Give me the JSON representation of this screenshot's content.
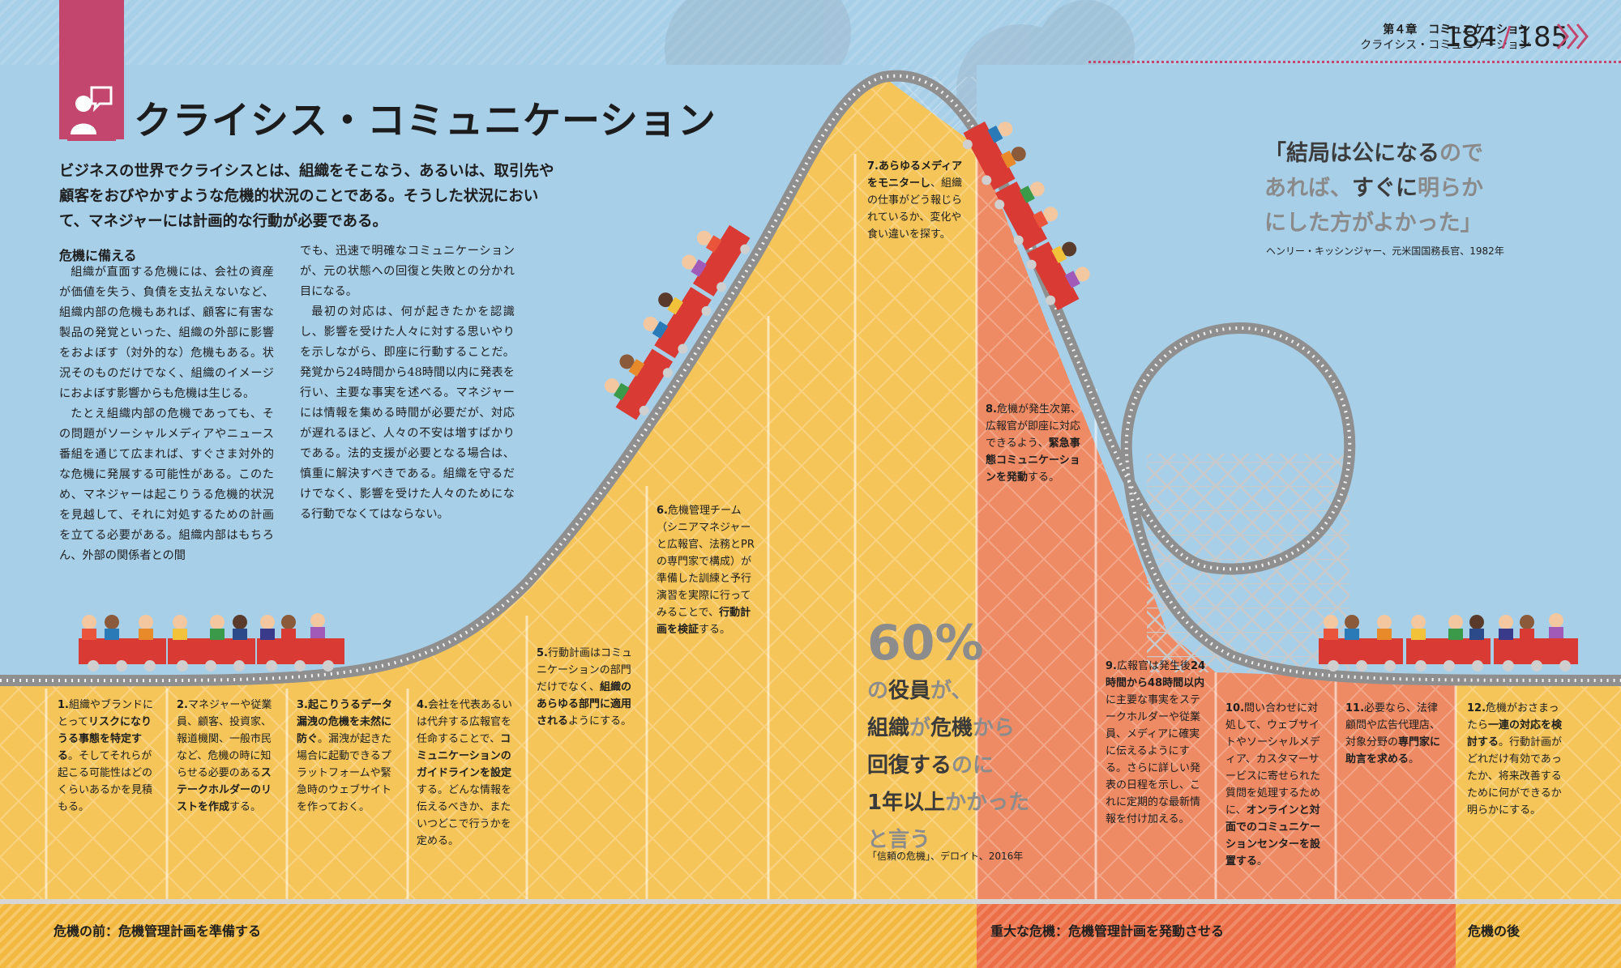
{
  "header": {
    "chapter": "第４章　コミュニケーション",
    "section": "クライシス・コミュニケーション",
    "page_left": "184",
    "page_right": "185"
  },
  "title": "クライシス・コミュニケーション",
  "intro": "ビジネスの世界でクライシスとは、組織をそこなう、あるいは、取引先や顧客をおびやかすような危機的状況のことである。そうした状況において、マネジャーには計画的な行動が必要である。",
  "body": {
    "subheading": "危機に備える",
    "col1": [
      "組織が直面する危機には、会社の資産が価値を失う、負債を支払えないなど、組織内部の危機もあれば、顧客に有害な製品の発覚といった、組織の外部に影響をおよぼす（対外的な）危機もある。状況そのものだけでなく、組織のイメージにおよぼす影響からも危機は生じる。",
      "たとえ組織内部の危機であっても、その問題がソーシャルメディアやニュース番組を通じて広まれば、すぐさま対外的な危機に発展する可能性がある。このため、マネジャーは起こりうる危機的状況を見越して、それに対処するための計画を立てる必要がある。組織内部はもちろん、外部の関係者との間"
    ],
    "col2_cont": "でも、迅速で明確なコミュニケーションが、元の状態への回復と失敗との分かれ目になる。",
    "col2": [
      "最初の対応は、何が起きたかを認識し、影響を受けた人々に対する思いやりを示しながら、即座に行動することだ。発覚から24時間から48時間以内に発表を行い、主要な事実を述べる。マネジャーには情報を集める時間が必要だが、対応が遅れるほど、人々の不安は増すばかりである。法的支援が必要となる場合は、慎重に解決すべきである。組織を守るだけでなく、影響を受けた人々のためになる行動でなくてはならない。"
    ]
  },
  "quote": {
    "p1": "「結局は公になる",
    "p2": "ので",
    "p3": "あれば、",
    "p4": "すぐに",
    "p5": "明らか",
    "p6": "にした方がよかった」",
    "source": "ヘンリー・キッシンジャー、元米国国務長官、1982年"
  },
  "steps": [
    {
      "num": "1.",
      "t1": "組織やブランドにとって",
      "b1": "リスクになりうる事態を特定する",
      "t2": "。そしてそれらが起こる可能性はどのくらいあるかを見積もる。",
      "b2": "",
      "t3": ""
    },
    {
      "num": "2.",
      "t1": "マネジャーや従業員、顧客、投資家、報道機関、一般市民など、危機の時に知らせる必要のある",
      "b1": "ステークホルダーのリストを作成",
      "t2": "する。",
      "b2": "",
      "t3": ""
    },
    {
      "num": "3.",
      "t1": "",
      "b1": "起こりうるデータ漏洩の危機を未然に防ぐ",
      "t2": "。漏洩が起きた場合に起動できるプラットフォームや緊急時のウェブサイトを作っておく。",
      "b2": "",
      "t3": ""
    },
    {
      "num": "4.",
      "t1": "会社を代表あるいは代弁する広報官を任命することで、",
      "b1": "コミュニケーションのガイドラインを設定",
      "t2": "する。どんな情報を伝えるべきか、またいつどこで行うかを定める。",
      "b2": "",
      "t3": ""
    },
    {
      "num": "5.",
      "t1": "行動計画はコミュニケーションの部門だけでなく、",
      "b1": "組織のあらゆる部門に適用される",
      "t2": "ようにする。",
      "b2": "",
      "t3": ""
    },
    {
      "num": "6.",
      "t1": "危機管理チーム（シニアマネジャーと広報官、法務とPRの専門家で構成）が準備した訓練と予行演習を実際に行ってみることで、",
      "b1": "行動計画を検証",
      "t2": "する。",
      "b2": "",
      "t3": ""
    },
    {
      "num": "7.",
      "t1": "",
      "b1": "あらゆるメディアをモニターし",
      "t2": "、組織の仕事がどう報じられているか、変化や食い違いを探す。",
      "b2": "",
      "t3": ""
    },
    {
      "num": "8.",
      "t1": "危機が発生次第、広報官が即座に対応できるよう、",
      "b1": "緊急事態コミュニケーションを発動",
      "t2": "する。",
      "b2": "",
      "t3": ""
    },
    {
      "num": "9.",
      "t1": "広報官は発生後",
      "b1": "24時間から48時間以内",
      "t2": "に主要な事実をステークホルダーや従業員、メディアに確実に伝えるようにする。さらに詳しい発表の日程を示し、これに定期的な最新情報を付け加える。",
      "b2": "",
      "t3": ""
    },
    {
      "num": "10.",
      "t1": "問い合わせに対処して、ウェブサイトやソーシャルメディア、カスタマーサービスに寄せられた質問を処理するために、",
      "b1": "オンラインと対面でのコミュニケーションセンターを設置する",
      "t2": "。",
      "b2": "",
      "t3": ""
    },
    {
      "num": "11.",
      "t1": "必要なら、法律顧問や広告代理店、対象分野の",
      "b1": "専門家に助言を求める",
      "t2": "。",
      "b2": "",
      "t3": ""
    },
    {
      "num": "12.",
      "t1": "危機がおさまったら",
      "b1": "一連の対応を検討する",
      "t2": "。行動計画がどれだけ有効であったか、将来改善するために何ができるか明らかにする。",
      "b2": "",
      "t3": ""
    }
  ],
  "stat": {
    "big": "60%",
    "a1": "の",
    "a2": "役員",
    "a3": "が、",
    "b1": "組織",
    "b2": "が",
    "b3": "危機",
    "b4": "から",
    "c1": "回復する",
    "c2": "のに",
    "d1": "1年以上",
    "d2": "かかった",
    "e1": "と言う",
    "source": "「信頼の危機」、デロイト、2016年"
  },
  "bands": {
    "before": "危機の前：危機管理計画を準備する",
    "during": "重大な危機：危機管理計画を発動させる",
    "after": "危機の後"
  },
  "colors": {
    "sky": "#a8cfe8",
    "yellow": "#f6c55a",
    "orange": "#ee8a64",
    "accent": "#c2466e",
    "track": "#8f8f8f",
    "car": "#d93a34"
  },
  "icons": {
    "section_icon": "presenter-speech-bubble-icon",
    "page_arrow": "chevron-right-icon"
  }
}
